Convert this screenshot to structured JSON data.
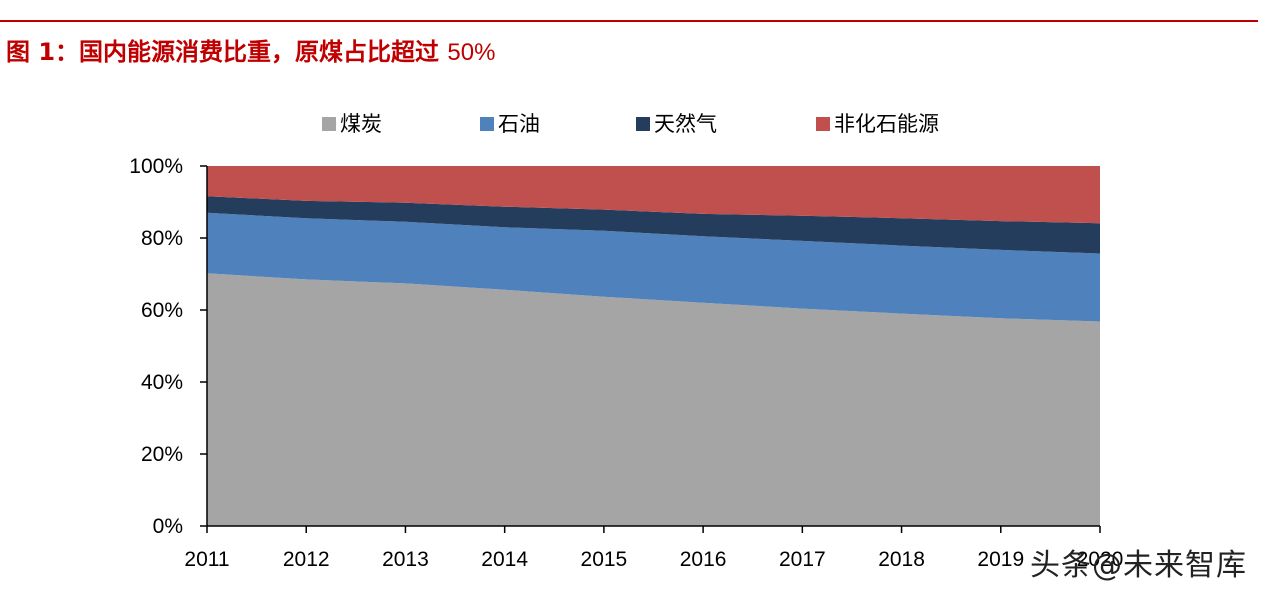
{
  "figure": {
    "title_prefix": "图 1：国内能源消费比重，原煤占比超过 ",
    "title_number": "50%"
  },
  "watermark": "头条@未来智库",
  "colors": {
    "rule": "#c00000",
    "title": "#c00000"
  },
  "chart_data": {
    "type": "area",
    "stacked": true,
    "x": [
      "2011",
      "2012",
      "2013",
      "2014",
      "2015",
      "2016",
      "2017",
      "2018",
      "2019",
      "2020"
    ],
    "series": [
      {
        "name": "煤炭",
        "color": "#a5a5a5",
        "values": [
          70.2,
          68.5,
          67.4,
          65.6,
          63.7,
          62.0,
          60.4,
          59.0,
          57.7,
          56.8
        ]
      },
      {
        "name": "石油",
        "color": "#4f81bd",
        "values": [
          16.8,
          17.0,
          17.1,
          17.4,
          18.3,
          18.5,
          18.8,
          18.9,
          19.0,
          18.9
        ]
      },
      {
        "name": "天然气",
        "color": "#243d5c",
        "values": [
          4.6,
          4.8,
          5.3,
          5.7,
          5.9,
          6.2,
          7.0,
          7.6,
          8.0,
          8.4
        ]
      },
      {
        "name": "非化石能源",
        "color": "#c0504d",
        "values": [
          8.4,
          9.7,
          10.2,
          11.3,
          12.1,
          13.3,
          13.8,
          14.5,
          15.3,
          15.9
        ]
      }
    ],
    "ylim": [
      0,
      100
    ],
    "yticks": [
      "0%",
      "20%",
      "40%",
      "60%",
      "80%",
      "100%"
    ],
    "ytick_values": [
      0,
      20,
      40,
      60,
      80,
      100
    ],
    "xlabel": "",
    "ylabel": "",
    "legend_position": "top",
    "grid": false
  }
}
